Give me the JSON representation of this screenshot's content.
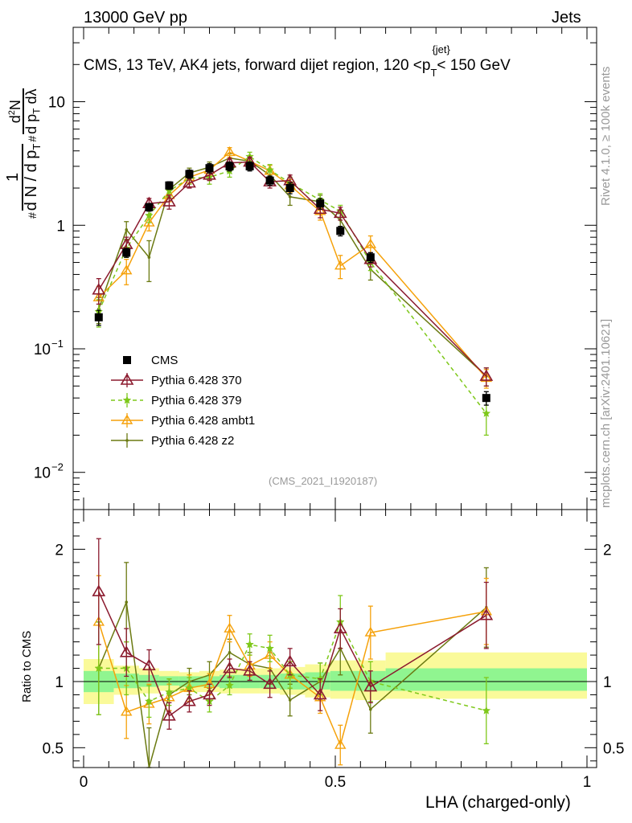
{
  "header": {
    "left": "13000 GeV pp",
    "right": "Jets"
  },
  "side_labels": {
    "rivet": "Rivet 4.1.0, ≥ 100k events",
    "mcplots": "mcplots.cern.ch [arXiv:2401.10621]"
  },
  "main_ylabel": "1/dN/dp_T  d²N/dp_T dλ",
  "colors": {
    "cms": "#000000",
    "p370": "#8b1a2e",
    "p379": "#7ec81a",
    "ambt1": "#f5a10a",
    "z2": "#6b7a12",
    "band_inner": "#90f590",
    "band_outer": "#fafa9a"
  },
  "chart_data": [
    {
      "type": "line",
      "title": "CMS, 13 TeV, AK4 jets, forward dijet region, 120 <p_T^{jet}< 150 GeV",
      "title_main": "CMS, 13 TeV, AK4 jets, forward dijet region, 120 <p",
      "title_sup": "{jet}",
      "title_sub": "T",
      "title_end": "< 150 GeV",
      "watermark": "(CMS_2021_I1920187)",
      "xlabel": "LHA (charged-only)",
      "yscale": "log",
      "xlim": [
        0,
        1
      ],
      "ylim": [
        0.005,
        40
      ],
      "yticks": [
        {
          "value": 10,
          "label": "10"
        },
        {
          "value": 1,
          "label": "1"
        },
        {
          "value": 0.1,
          "base": "10",
          "exp": "−1"
        },
        {
          "value": 0.01,
          "base": "10",
          "exp": "−2"
        }
      ],
      "x": [
        0.03,
        0.085,
        0.13,
        0.17,
        0.21,
        0.25,
        0.29,
        0.33,
        0.37,
        0.41,
        0.47,
        0.51,
        0.57,
        0.8
      ],
      "series": [
        {
          "name": "CMS",
          "key": "cms",
          "values": [
            0.18,
            0.6,
            1.4,
            2.1,
            2.6,
            2.9,
            3.0,
            3.0,
            2.3,
            2.0,
            1.5,
            0.9,
            0.55,
            0.04
          ],
          "errors": [
            0.025,
            0.05,
            0.1,
            0.15,
            0.2,
            0.25,
            0.25,
            0.25,
            0.2,
            0.2,
            0.15,
            0.08,
            0.05,
            0.005
          ]
        },
        {
          "name": "Pythia 6.428 370",
          "key": "p370",
          "values": [
            0.3,
            0.7,
            1.5,
            1.55,
            2.2,
            2.55,
            3.2,
            3.25,
            2.25,
            2.3,
            1.35,
            1.25,
            0.53,
            0.06
          ],
          "errors": [
            0.07,
            0.1,
            0.15,
            0.2,
            0.2,
            0.25,
            0.25,
            0.3,
            0.25,
            0.25,
            0.2,
            0.15,
            0.07,
            0.01
          ]
        },
        {
          "name": "Pythia 6.428 379",
          "key": "p379",
          "values": [
            0.2,
            0.65,
            1.2,
            1.9,
            2.4,
            2.45,
            2.75,
            3.6,
            2.8,
            2.2,
            1.6,
            1.3,
            0.5,
            0.03
          ],
          "errors": [
            0.05,
            0.1,
            0.15,
            0.2,
            0.25,
            0.3,
            0.3,
            0.3,
            0.3,
            0.25,
            0.2,
            0.15,
            0.07,
            0.01
          ]
        },
        {
          "name": "Pythia 6.428 ambt1",
          "key": "ambt1",
          "values": [
            0.26,
            0.43,
            1.05,
            1.75,
            2.45,
            2.8,
            3.9,
            3.3,
            2.75,
            2.1,
            1.3,
            0.47,
            0.7,
            0.058
          ],
          "errors": [
            0.06,
            0.1,
            0.15,
            0.2,
            0.25,
            0.25,
            0.35,
            0.3,
            0.3,
            0.25,
            0.2,
            0.1,
            0.12,
            0.01
          ]
        },
        {
          "name": "Pythia 6.428 z2",
          "key": "z2",
          "values": [
            0.21,
            0.92,
            0.55,
            1.95,
            2.65,
            2.95,
            3.5,
            3.3,
            2.55,
            1.7,
            1.55,
            1.1,
            0.44,
            0.06
          ],
          "errors": [
            0.05,
            0.15,
            0.2,
            0.2,
            0.25,
            0.3,
            0.3,
            0.3,
            0.3,
            0.25,
            0.2,
            0.15,
            0.08,
            0.01
          ]
        }
      ]
    },
    {
      "type": "line",
      "ylabel": "Ratio to CMS",
      "xlabel": "LHA (charged-only)",
      "xlim": [
        0,
        1
      ],
      "ylim": [
        0.35,
        2.3
      ],
      "yticks": [
        {
          "value": 0.5,
          "label": "0.5"
        },
        {
          "value": 1,
          "label": "1"
        },
        {
          "value": 2,
          "label": "2"
        }
      ],
      "xticks": [
        {
          "value": 0,
          "label": "0"
        },
        {
          "value": 0.5,
          "label": "0.5"
        },
        {
          "value": 1,
          "label": "1"
        }
      ],
      "bands": [
        {
          "x0": 0.0,
          "x1": 0.06,
          "inner": [
            0.92,
            1.08
          ],
          "outer": [
            0.83,
            1.17
          ]
        },
        {
          "x0": 0.06,
          "x1": 0.11,
          "inner": [
            0.95,
            1.06
          ],
          "outer": [
            0.9,
            1.12
          ]
        },
        {
          "x0": 0.11,
          "x1": 0.15,
          "inner": [
            0.96,
            1.05
          ],
          "outer": [
            0.91,
            1.1
          ]
        },
        {
          "x0": 0.15,
          "x1": 0.19,
          "inner": [
            0.97,
            1.04
          ],
          "outer": [
            0.93,
            1.08
          ]
        },
        {
          "x0": 0.19,
          "x1": 0.23,
          "inner": [
            0.96,
            1.04
          ],
          "outer": [
            0.92,
            1.07
          ]
        },
        {
          "x0": 0.23,
          "x1": 0.27,
          "inner": [
            0.96,
            1.04
          ],
          "outer": [
            0.92,
            1.08
          ]
        },
        {
          "x0": 0.27,
          "x1": 0.31,
          "inner": [
            0.95,
            1.05
          ],
          "outer": [
            0.91,
            1.09
          ]
        },
        {
          "x0": 0.31,
          "x1": 0.35,
          "inner": [
            0.95,
            1.05
          ],
          "outer": [
            0.91,
            1.1
          ]
        },
        {
          "x0": 0.35,
          "x1": 0.39,
          "inner": [
            0.95,
            1.05
          ],
          "outer": [
            0.91,
            1.1
          ]
        },
        {
          "x0": 0.39,
          "x1": 0.44,
          "inner": [
            0.94,
            1.06
          ],
          "outer": [
            0.9,
            1.11
          ]
        },
        {
          "x0": 0.44,
          "x1": 0.49,
          "inner": [
            0.94,
            1.07
          ],
          "outer": [
            0.88,
            1.13
          ]
        },
        {
          "x0": 0.49,
          "x1": 0.54,
          "inner": [
            0.93,
            1.08
          ],
          "outer": [
            0.87,
            1.16
          ]
        },
        {
          "x0": 0.54,
          "x1": 0.6,
          "inner": [
            0.93,
            1.08
          ],
          "outer": [
            0.86,
            1.16
          ]
        },
        {
          "x0": 0.6,
          "x1": 1.0,
          "inner": [
            0.93,
            1.1
          ],
          "outer": [
            0.87,
            1.22
          ]
        }
      ],
      "series": [
        {
          "key": "p370",
          "values": [
            1.68,
            1.22,
            1.12,
            0.74,
            0.85,
            0.9,
            1.1,
            1.08,
            0.98,
            1.15,
            0.9,
            1.4,
            0.96,
            1.5
          ],
          "errors": [
            0.4,
            0.18,
            0.12,
            0.1,
            0.08,
            0.08,
            0.07,
            0.07,
            0.1,
            0.1,
            0.12,
            0.15,
            0.12,
            0.25
          ]
        },
        {
          "key": "p379",
          "values": [
            1.1,
            1.1,
            0.85,
            0.92,
            0.95,
            0.85,
            0.97,
            1.28,
            1.25,
            1.05,
            1.02,
            1.45,
            1.0,
            0.78
          ],
          "errors": [
            0.35,
            0.2,
            0.12,
            0.1,
            0.08,
            0.08,
            0.07,
            0.08,
            0.1,
            0.1,
            0.12,
            0.2,
            0.15,
            0.25
          ]
        },
        {
          "key": "ambt1",
          "values": [
            1.45,
            0.77,
            0.83,
            0.88,
            0.95,
            0.98,
            1.4,
            1.12,
            1.2,
            1.05,
            0.88,
            0.52,
            1.37,
            1.53
          ],
          "errors": [
            0.35,
            0.2,
            0.15,
            0.1,
            0.1,
            0.08,
            0.1,
            0.08,
            0.1,
            0.1,
            0.12,
            0.15,
            0.2,
            0.25
          ]
        },
        {
          "key": "z2",
          "values": [
            1.1,
            1.6,
            0.3,
            0.9,
            1.0,
            1.05,
            1.22,
            1.13,
            1.1,
            0.86,
            1.0,
            1.25,
            0.79,
            1.56
          ],
          "errors": [
            0.35,
            0.3,
            0.35,
            0.12,
            0.1,
            0.1,
            0.1,
            0.09,
            0.12,
            0.12,
            0.14,
            0.2,
            0.18,
            0.3
          ]
        }
      ]
    }
  ]
}
